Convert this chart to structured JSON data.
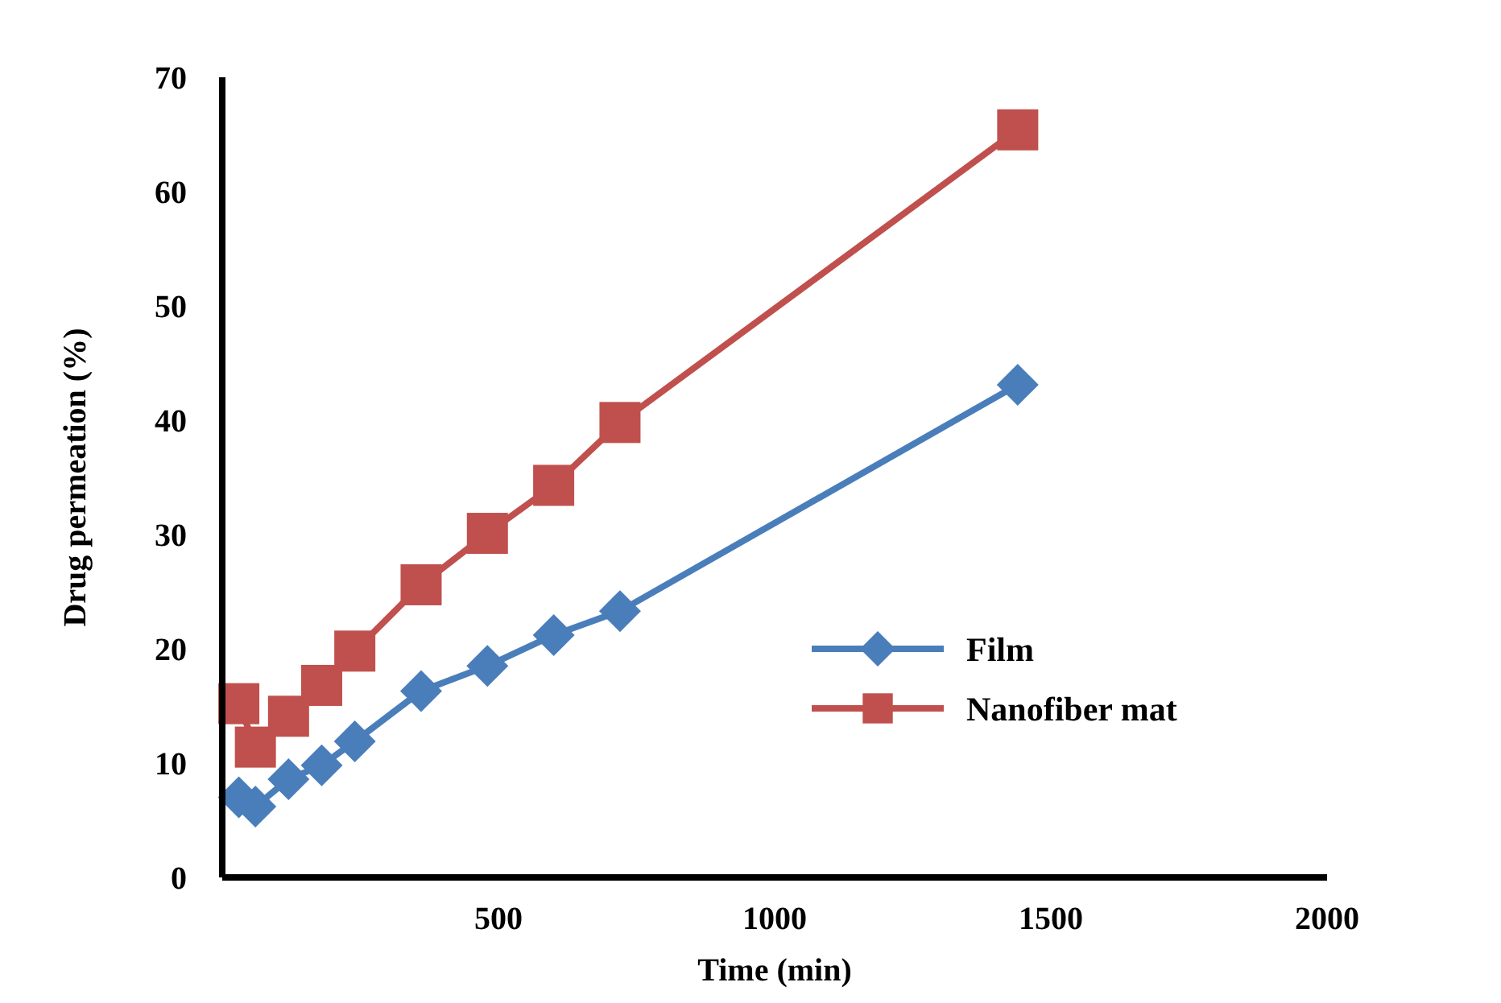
{
  "chart_data": {
    "type": "line",
    "xlabel": "Time (min)",
    "ylabel": "Drug permeation (%)",
    "xlim": [
      0,
      2000
    ],
    "xticks": [
      500,
      1000,
      1500,
      2000
    ],
    "ylim": [
      0,
      70
    ],
    "yticks": [
      0,
      10,
      20,
      30,
      40,
      50,
      60,
      70
    ],
    "legend": "right",
    "grid": false,
    "series": [
      {
        "name": "Film",
        "color": "#4a7ebb",
        "marker": "diamond",
        "x": [
          30,
          60,
          120,
          180,
          240,
          360,
          480,
          600,
          720,
          1440
        ],
        "values": [
          7.0,
          6.2,
          8.6,
          9.8,
          11.9,
          16.3,
          18.5,
          21.2,
          23.3,
          43.1
        ]
      },
      {
        "name": "Nanofiber mat",
        "color": "#c0504d",
        "marker": "square",
        "x": [
          30,
          60,
          120,
          180,
          240,
          360,
          480,
          600,
          720,
          1440
        ],
        "values": [
          15.2,
          11.4,
          14.1,
          16.8,
          19.8,
          25.6,
          30.1,
          34.3,
          39.8,
          65.4
        ]
      }
    ]
  }
}
